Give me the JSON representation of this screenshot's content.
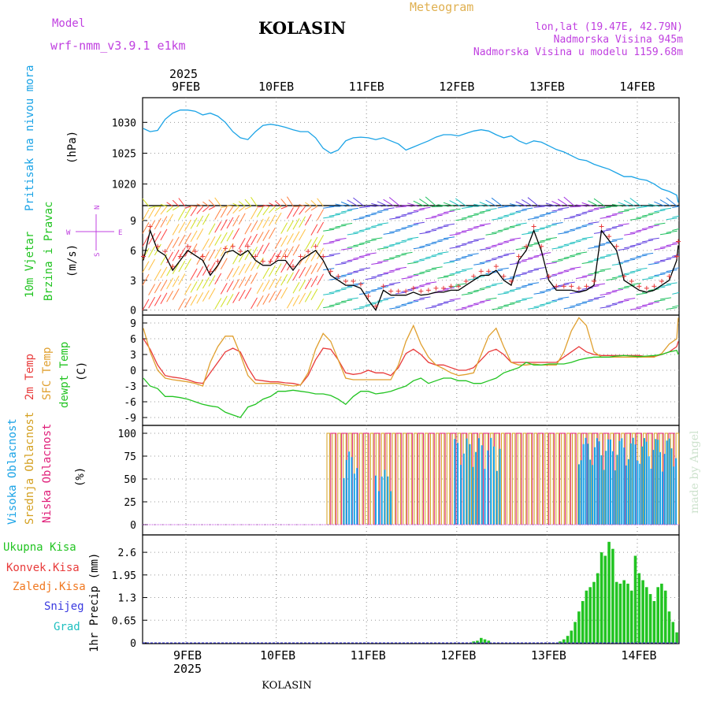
{
  "header": {
    "model_label": "Model",
    "model_name": "wrf-nmm_v3.9.1 e1km",
    "station": "KOLASIN",
    "product": "Meteogram",
    "coords": "lon,lat (19.47E, 42.79N)",
    "elevation": "Nadmorska Visina 945m",
    "model_elevation": "Nadmorska Visina u modelu 1159.68m",
    "footer_station": "KOLASIN",
    "watermark": "made by Angel"
  },
  "colors": {
    "pressure": "#1aa3e6",
    "temp2m": "#e83a3a",
    "sfc": "#e0a030",
    "dewpt": "#22c422",
    "cloud_high": "#1aa3e6",
    "cloud_mid": "#d4a020",
    "cloud_low": "#e0207a",
    "precip_total": "#22c422",
    "precip_conv": "#e83a3a",
    "precip_frz": "#f07820",
    "snow": "#3a3ae0",
    "grad": "#20c0c0",
    "wind_label": "#22c422",
    "magenta": "#c040e0",
    "orange": "#e0b050"
  },
  "time_axis": {
    "year": "2025",
    "days": [
      "9FEB",
      "10FEB",
      "11FEB",
      "12FEB",
      "13FEB",
      "14FEB"
    ],
    "start_hour": 0,
    "end_hour": 144
  },
  "panels": {
    "pressure": {
      "labels": [
        "Pritisak na nivou mora",
        "(hPa)"
      ],
      "ticks": [
        "1020",
        "1025",
        "1030"
      ]
    },
    "wind": {
      "labels": [
        "10m Vjetar",
        "Brzina i Pravac",
        "(m/s)"
      ],
      "ticks": [
        "0",
        "3",
        "6",
        "9"
      ],
      "compass": {
        "n": "N",
        "w": "W",
        "e": "E",
        "s": "S"
      }
    },
    "temp": {
      "labels": [
        "2m Temp",
        "SFC Temp",
        "dewpt Temp",
        "(C)"
      ],
      "ticks": [
        "-9",
        "-6",
        "-3",
        "0",
        "3",
        "6",
        "9"
      ]
    },
    "cloud": {
      "labels": [
        "Visoka Oblacnost",
        "Srednja Oblacnost",
        "Niska Oblacnost",
        "(%)"
      ],
      "ticks": [
        "0",
        "25",
        "50",
        "75",
        "100"
      ]
    },
    "precip": {
      "labels": [
        "Ukupna Kisa",
        "Konvek.Kisa",
        "Zaledj.Kisa",
        "Snijeg",
        "Grad",
        "1hr Precip (mm)"
      ],
      "ticks": [
        "0",
        "0.65",
        "1.3",
        "1.95",
        "2.6"
      ]
    }
  },
  "chart_data": [
    {
      "type": "line",
      "name": "pressure",
      "x_unit": "hours from 9FEB 00",
      "ylim": [
        1016.5,
        1034
      ],
      "x": [
        0,
        2,
        4,
        6,
        8,
        10,
        12,
        14,
        16,
        18,
        20,
        22,
        24,
        26,
        28,
        30,
        32,
        34,
        36,
        38,
        40,
        42,
        44,
        46,
        48,
        50,
        52,
        54,
        56,
        58,
        60,
        62,
        64,
        66,
        68,
        70,
        72,
        74,
        76,
        78,
        80,
        82,
        84,
        86,
        88,
        90,
        92,
        94,
        96,
        98,
        100,
        102,
        104,
        106,
        108,
        110,
        112,
        114,
        116,
        118,
        120,
        122,
        124,
        126,
        128,
        130,
        132,
        134,
        136,
        138,
        140,
        142,
        144
      ],
      "y": [
        1029,
        1028.5,
        1028.7,
        1030.5,
        1031.5,
        1032,
        1032,
        1031.8,
        1031.2,
        1031.5,
        1031,
        1030,
        1028.5,
        1027.5,
        1027.2,
        1028.5,
        1029.5,
        1029.7,
        1029.5,
        1029.2,
        1028.8,
        1028.5,
        1028.5,
        1027.5,
        1025.8,
        1025,
        1025.5,
        1027,
        1027.5,
        1027.6,
        1027.5,
        1027.2,
        1027.5,
        1027,
        1026.5,
        1025.5,
        1026,
        1026.5,
        1027,
        1027.6,
        1028,
        1028,
        1027.8,
        1028.2,
        1028.6,
        1028.8,
        1028.6,
        1028,
        1027.5,
        1027.8,
        1027,
        1026.5,
        1027,
        1026.8,
        1026.2,
        1025.6,
        1025.2,
        1024.6,
        1024,
        1023.8,
        1023.2,
        1022.8,
        1022.4,
        1021.8,
        1021.2,
        1021.2,
        1020.8,
        1020.6,
        1020,
        1019.2,
        1018.8,
        1018.2,
        1017
      ]
    },
    {
      "type": "line",
      "name": "wind-speed",
      "x_unit": "hours from 9FEB 00",
      "ylim": [
        -0.5,
        10.5
      ],
      "x": [
        0,
        2,
        4,
        6,
        8,
        10,
        12,
        14,
        16,
        18,
        20,
        22,
        24,
        26,
        28,
        30,
        32,
        34,
        36,
        38,
        40,
        42,
        44,
        46,
        48,
        50,
        52,
        54,
        56,
        58,
        60,
        62,
        64,
        66,
        68,
        70,
        72,
        74,
        76,
        78,
        80,
        82,
        84,
        86,
        88,
        90,
        92,
        94,
        96,
        98,
        100,
        102,
        104,
        106,
        108,
        110,
        112,
        114,
        116,
        118,
        120,
        122,
        124,
        126,
        128,
        130,
        132,
        134,
        136,
        138,
        140,
        142,
        144
      ],
      "y": [
        5,
        8,
        6,
        5.5,
        4,
        5,
        6,
        5.5,
        5,
        3.5,
        4.5,
        5.8,
        6,
        5.5,
        6,
        5,
        4.5,
        4.5,
        5,
        5,
        4,
        5,
        5.5,
        6,
        5,
        3.5,
        3,
        2.5,
        2.5,
        2.2,
        1,
        0,
        2,
        1.5,
        1.5,
        1.5,
        1.8,
        1.5,
        1.6,
        1.8,
        1.8,
        2,
        2,
        2.5,
        3,
        3.5,
        3.5,
        4,
        3,
        2.5,
        5,
        6,
        8,
        6,
        3,
        2,
        2,
        2,
        1.8,
        2,
        2.5,
        8,
        7,
        6,
        3,
        2.5,
        2,
        1.8,
        2,
        2.5,
        3,
        5,
        6.5
      ]
    },
    {
      "type": "line",
      "name": "temperature",
      "x_unit": "hours from 9FEB 00",
      "ylim": [
        -10.5,
        10.5
      ],
      "series": [
        {
          "name": "2m Temp",
          "y": [
            6,
            4,
            1,
            -1,
            -1.3,
            -1.5,
            -1.8,
            -2.3,
            -2.5,
            -0.5,
            1.5,
            3.5,
            4.2,
            3.5,
            0.5,
            -1.8,
            -2,
            -2.2,
            -2.2,
            -2.4,
            -2.5,
            -2.8,
            -1,
            2,
            4.2,
            4,
            2,
            -0.5,
            -0.8,
            -0.6,
            0,
            -0.5,
            -0.5,
            -1,
            0.5,
            3.2,
            4,
            3,
            1.5,
            1,
            1,
            0.5,
            0,
            0,
            0.5,
            2,
            3.5,
            4,
            3,
            1.5,
            1.5,
            1.5,
            1.5,
            1.5,
            1.5,
            1.5,
            2.5,
            3.5,
            4.5,
            3.5,
            3,
            2.8,
            2.8,
            2.8,
            2.8,
            2.8,
            2.8,
            2.6,
            2.6,
            3,
            3.5,
            4.5,
            5.5
          ]
        },
        {
          "name": "SFC Temp",
          "y": [
            8,
            3.5,
            0,
            -1.5,
            -1.8,
            -2,
            -2.2,
            -2.5,
            -3,
            1.5,
            4.5,
            6.5,
            6.5,
            3,
            -1,
            -2.5,
            -2.5,
            -2.5,
            -2.5,
            -2.8,
            -3,
            -2.8,
            -0.5,
            4,
            7,
            5.5,
            2,
            -1.5,
            -1.8,
            -1.8,
            -1.8,
            -1.8,
            -1.8,
            -1.8,
            1,
            5.5,
            8.5,
            5,
            2.5,
            1,
            0.3,
            -0.5,
            -1,
            -0.8,
            -0.5,
            3,
            6.5,
            8,
            4.5,
            1.5,
            1,
            1,
            1.2,
            1,
            1,
            1,
            3.5,
            7.5,
            10,
            8.5,
            3.5,
            2.5,
            2.5,
            2.5,
            2.5,
            2.5,
            2.5,
            2.5,
            2.5,
            3.2,
            5,
            6,
            10
          ]
        },
        {
          "name": "dewpt Temp",
          "y": [
            -1.5,
            -3,
            -3.5,
            -5,
            -5,
            -5.2,
            -5.5,
            -6,
            -6.5,
            -6.8,
            -7,
            -8,
            -8.5,
            -9,
            -7,
            -6.5,
            -5.5,
            -5,
            -4,
            -4,
            -3.8,
            -4,
            -4.2,
            -4.5,
            -4.5,
            -4.8,
            -5.5,
            -6.5,
            -5,
            -4,
            -4,
            -4.5,
            -4.3,
            -4,
            -3.5,
            -3,
            -2,
            -1.5,
            -2.5,
            -2,
            -1.5,
            -1.5,
            -2,
            -2,
            -2.5,
            -2.5,
            -2,
            -1.5,
            -0.5,
            0,
            0.5,
            1.5,
            1,
            1,
            1.2,
            1.2,
            1.2,
            1.5,
            2,
            2.3,
            2.5,
            2.5,
            2.5,
            2.7,
            2.8,
            2.7,
            2.6,
            2.7,
            2.8,
            3,
            3.5,
            3.8,
            3
          ]
        }
      ]
    },
    {
      "type": "bar",
      "name": "cloud-cover",
      "x_unit": "hours from 9FEB 00",
      "ylim": [
        0,
        100
      ],
      "spans": [
        {
          "series": "mid",
          "from": 49,
          "to": 144,
          "step": 1.45,
          "value": 100
        },
        {
          "series": "low",
          "from": 50,
          "to": 144,
          "step": 2.9,
          "value": 100
        },
        {
          "series": "high",
          "from": 53.5,
          "to": 57.5,
          "step": 0.7,
          "value": 80
        },
        {
          "series": "high",
          "from": 62,
          "to": 66,
          "step": 0.8,
          "value": 60
        },
        {
          "series": "high",
          "from": 83,
          "to": 95,
          "step": 0.8,
          "value": 95
        },
        {
          "series": "high",
          "from": 116,
          "to": 144,
          "step": 0.6,
          "value": 95
        }
      ]
    },
    {
      "type": "bar",
      "name": "precipitation",
      "x_unit": "hours from 9FEB 00",
      "ylim": [
        0,
        3.1
      ],
      "x": [
        88,
        89,
        90,
        91,
        92,
        111,
        112,
        113,
        114,
        115,
        116,
        117,
        118,
        119,
        120,
        121,
        122,
        123,
        124,
        125,
        126,
        127,
        128,
        129,
        130,
        131,
        132,
        133,
        134,
        135,
        136,
        137,
        138,
        139,
        140,
        141,
        142,
        143,
        144
      ],
      "values": [
        0.04,
        0.06,
        0.14,
        0.1,
        0.06,
        0.04,
        0.1,
        0.2,
        0.35,
        0.6,
        0.9,
        1.2,
        1.5,
        1.6,
        1.75,
        2.0,
        2.6,
        2.5,
        2.9,
        2.7,
        1.75,
        1.7,
        1.8,
        1.7,
        1.5,
        2.5,
        2.0,
        1.8,
        1.6,
        1.4,
        1.2,
        1.6,
        1.7,
        1.5,
        0.9,
        0.6,
        0.3,
        0.2,
        0.15
      ]
    }
  ]
}
